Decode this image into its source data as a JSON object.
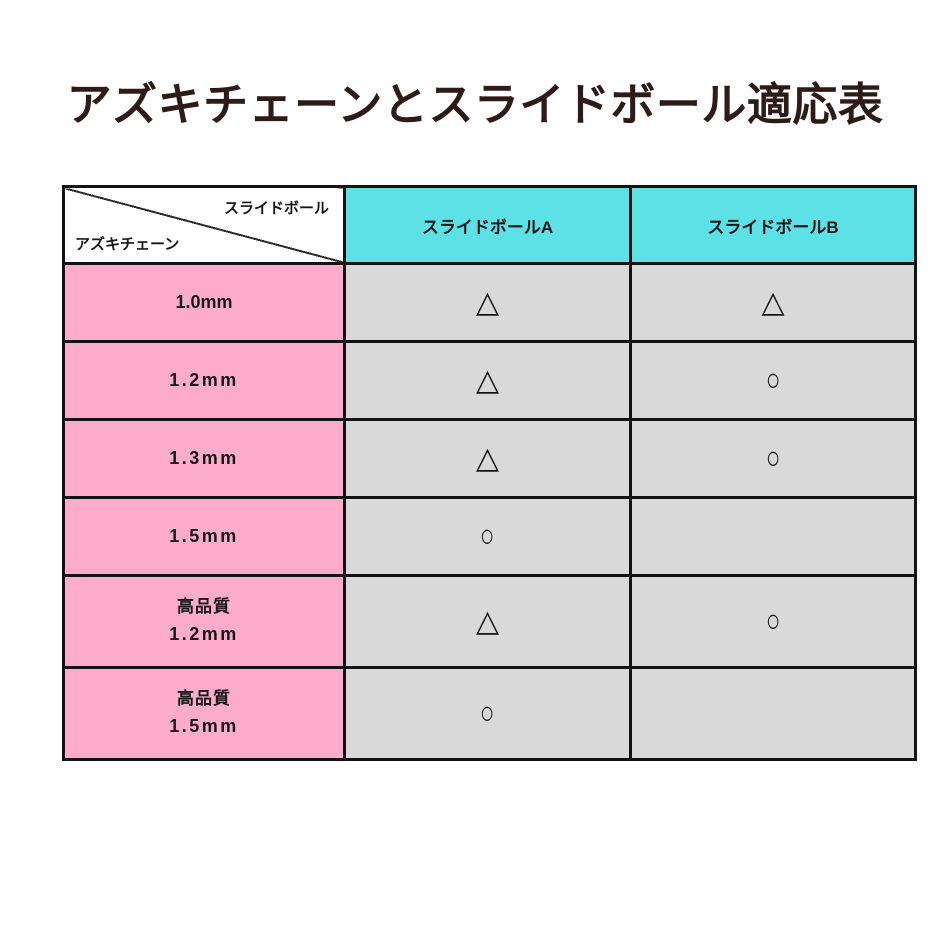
{
  "title": "アズキチェーンとスライドボール適応表",
  "colors": {
    "title_text": "#2e1a17",
    "header_bg": "#5ce1e6",
    "row_label_bg": "#fcacc8",
    "value_cell_bg": "#d9d9d9",
    "border": "#121212",
    "page_bg": "#ffffff"
  },
  "table": {
    "corner": {
      "top_label": "スライドボール",
      "bottom_label": "アズキチェーン"
    },
    "columns": [
      "スライドボールA",
      "スライドボールB"
    ],
    "rows": [
      {
        "label1": "1.0mm",
        "label2": "",
        "a": "△",
        "b": "△"
      },
      {
        "label1": "1.2mm",
        "label2": "",
        "a": "△",
        "b": "○"
      },
      {
        "label1": "1.3mm",
        "label2": "",
        "a": "△",
        "b": "○"
      },
      {
        "label1": "1.5mm",
        "label2": "",
        "a": "○",
        "b": ""
      },
      {
        "label1": "高品質",
        "label2": "1.2mm",
        "a": "△",
        "b": "○"
      },
      {
        "label1": "高品質",
        "label2": "1.5mm",
        "a": "○",
        "b": ""
      }
    ]
  },
  "chart_data": {
    "type": "table",
    "title": "アズキチェーンとスライドボール適応表",
    "corner_top_header": "スライドボール",
    "corner_bottom_header": "アズキチェーン",
    "columns": [
      "スライドボールA",
      "スライドボールB"
    ],
    "row_labels": [
      "1.0mm",
      "1.2mm",
      "1.3mm",
      "1.5mm",
      "高品質 1.2mm",
      "高品質 1.5mm"
    ],
    "values": [
      [
        "△",
        "△"
      ],
      [
        "△",
        "○"
      ],
      [
        "△",
        "○"
      ],
      [
        "○",
        ""
      ],
      [
        "△",
        "○"
      ],
      [
        "○",
        ""
      ]
    ],
    "symbol_legend_shown": false
  }
}
